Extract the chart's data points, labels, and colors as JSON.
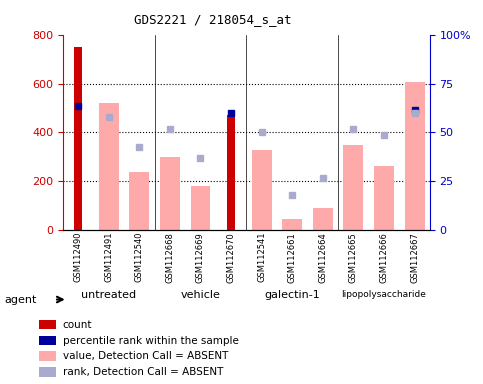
{
  "title": "GDS2221 / 218054_s_at",
  "samples": [
    "GSM112490",
    "GSM112491",
    "GSM112540",
    "GSM112668",
    "GSM112669",
    "GSM112670",
    "GSM112541",
    "GSM112661",
    "GSM112664",
    "GSM112665",
    "GSM112666",
    "GSM112667"
  ],
  "group_labels": [
    "untreated",
    "vehicle",
    "galectin-1",
    "lipopolysaccharide"
  ],
  "group_starts": [
    0,
    3,
    6,
    9
  ],
  "group_ends": [
    3,
    6,
    9,
    12
  ],
  "group_colors": [
    "#ccffcc",
    "#ccffcc",
    "#66ee66",
    "#44ee44"
  ],
  "count_values": [
    750,
    null,
    null,
    null,
    null,
    470,
    null,
    null,
    null,
    null,
    null,
    null
  ],
  "percentile_values": [
    510,
    null,
    null,
    null,
    null,
    480,
    null,
    null,
    null,
    null,
    null,
    490
  ],
  "absent_value_bars": [
    null,
    520,
    240,
    300,
    183,
    null,
    327,
    45,
    90,
    348,
    265,
    608
  ],
  "absent_rank_dots": [
    null,
    465,
    340,
    413,
    295,
    null,
    403,
    145,
    213,
    413,
    390,
    480
  ],
  "left_ylim": [
    0,
    800
  ],
  "right_ylim": [
    0,
    100
  ],
  "left_yticks": [
    0,
    200,
    400,
    600,
    800
  ],
  "right_yticks": [
    0,
    25,
    50,
    75,
    100
  ],
  "right_yticklabels": [
    "0",
    "25",
    "50",
    "75",
    "100%"
  ],
  "count_color": "#cc0000",
  "percentile_color": "#000099",
  "absent_bar_color": "#ffaaaa",
  "absent_rank_color": "#aaaacc",
  "ylabel_left_color": "#cc0000",
  "ylabel_right_color": "#0000cc",
  "legend_items": [
    {
      "color": "#cc0000",
      "label": "count"
    },
    {
      "color": "#000099",
      "label": "percentile rank within the sample"
    },
    {
      "color": "#ffaaaa",
      "label": "value, Detection Call = ABSENT"
    },
    {
      "color": "#aaaacc",
      "label": "rank, Detection Call = ABSENT"
    }
  ]
}
